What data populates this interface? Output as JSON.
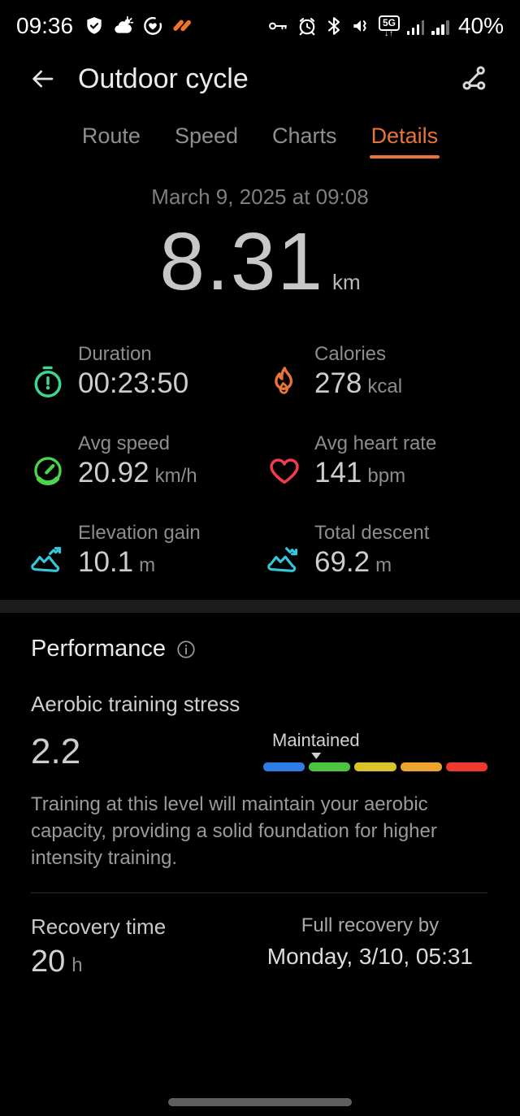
{
  "status_bar": {
    "time": "09:36",
    "battery": "40%",
    "network_label": "5G",
    "left_icons": [
      "shield-check",
      "weather-cloud-sun",
      "health-monitoring",
      "health-app-logo"
    ],
    "right_icons": [
      "key",
      "alarm-clock",
      "bluetooth",
      "vibrate-mute",
      "5g-network",
      "signal-bars",
      "signal-bars",
      "battery-percent"
    ]
  },
  "header": {
    "title": "Outdoor cycle"
  },
  "tabs": {
    "items": [
      {
        "label": "Route",
        "active": false
      },
      {
        "label": "Speed",
        "active": false
      },
      {
        "label": "Charts",
        "active": false
      },
      {
        "label": "Details",
        "active": true
      }
    ]
  },
  "summary": {
    "datetime": "March 9, 2025 at 09:08",
    "distance_value": "8.31",
    "distance_unit": "km"
  },
  "stats": {
    "items": [
      {
        "icon": "stopwatch-icon",
        "color": "#3fd492",
        "label": "Duration",
        "value": "00:23:50",
        "unit": ""
      },
      {
        "icon": "flame-icon",
        "color": "#e8743a",
        "label": "Calories",
        "value": "278",
        "unit": "kcal"
      },
      {
        "icon": "speedometer-icon",
        "color": "#4ad64a",
        "label": "Avg speed",
        "value": "20.92",
        "unit": "km/h"
      },
      {
        "icon": "heart-icon",
        "color": "#f23b4e",
        "label": "Avg heart rate",
        "value": "141",
        "unit": "bpm"
      },
      {
        "icon": "mountain-up-icon",
        "color": "#35c6d9",
        "label": "Elevation gain",
        "value": "10.1",
        "unit": "m"
      },
      {
        "icon": "mountain-down-icon",
        "color": "#35c6d9",
        "label": "Total descent",
        "value": "69.2",
        "unit": "m"
      }
    ]
  },
  "performance": {
    "title": "Performance",
    "aerobic": {
      "label": "Aerobic training stress",
      "value": "2.2",
      "level_label": "Maintained",
      "bar_colors": [
        "#2e7ce6",
        "#4cc43d",
        "#d8c42a",
        "#eca42e",
        "#f0392e"
      ],
      "pointer_position_pct": 23.5,
      "description": "Training at this level will maintain your aerobic capacity, providing a solid foundation for higher intensity training."
    },
    "recovery": {
      "label": "Recovery time",
      "value": "20",
      "unit": "h",
      "full_recovery_label": "Full recovery by",
      "full_recovery_value": "Monday, 3/10, 05:31"
    }
  },
  "accent_color": "#e8743a"
}
